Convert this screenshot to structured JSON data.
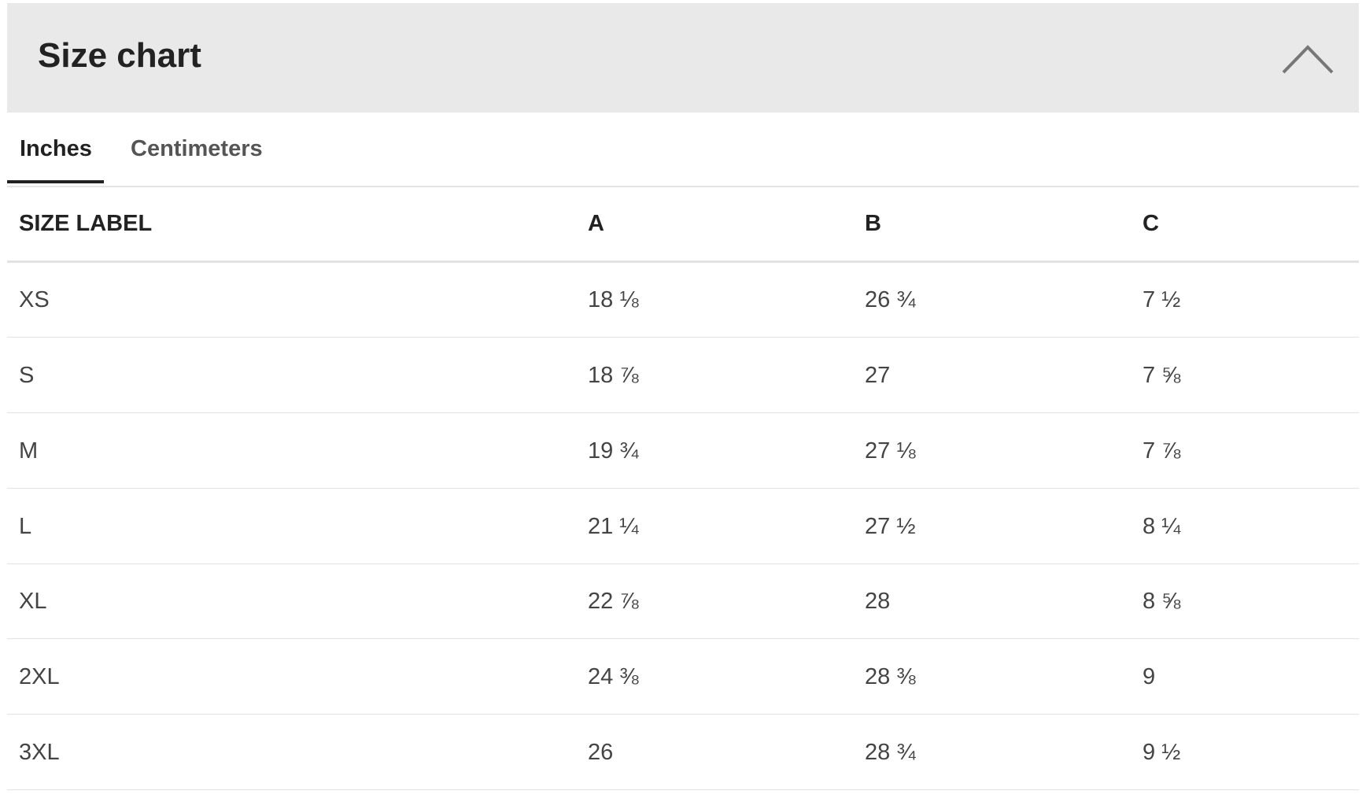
{
  "header": {
    "title": "Size chart"
  },
  "tabs": [
    "Inches",
    "Centimeters"
  ],
  "table": {
    "columns": [
      "SIZE LABEL",
      "A",
      "B",
      "C"
    ],
    "rows": [
      [
        "XS",
        "18 ⅛",
        "26 ¾",
        "7 ½"
      ],
      [
        "S",
        "18 ⅞",
        "27",
        "7 ⅝"
      ],
      [
        "M",
        "19 ¾",
        "27 ⅛",
        "7 ⅞"
      ],
      [
        "L",
        "21 ¼",
        "27 ½",
        "8 ¼"
      ],
      [
        "XL",
        "22 ⅞",
        "28",
        "8 ⅝"
      ],
      [
        "2XL",
        "24 ⅜",
        "28 ⅜",
        "9"
      ],
      [
        "3XL",
        "26",
        "28 ¾",
        "9 ½"
      ]
    ]
  }
}
